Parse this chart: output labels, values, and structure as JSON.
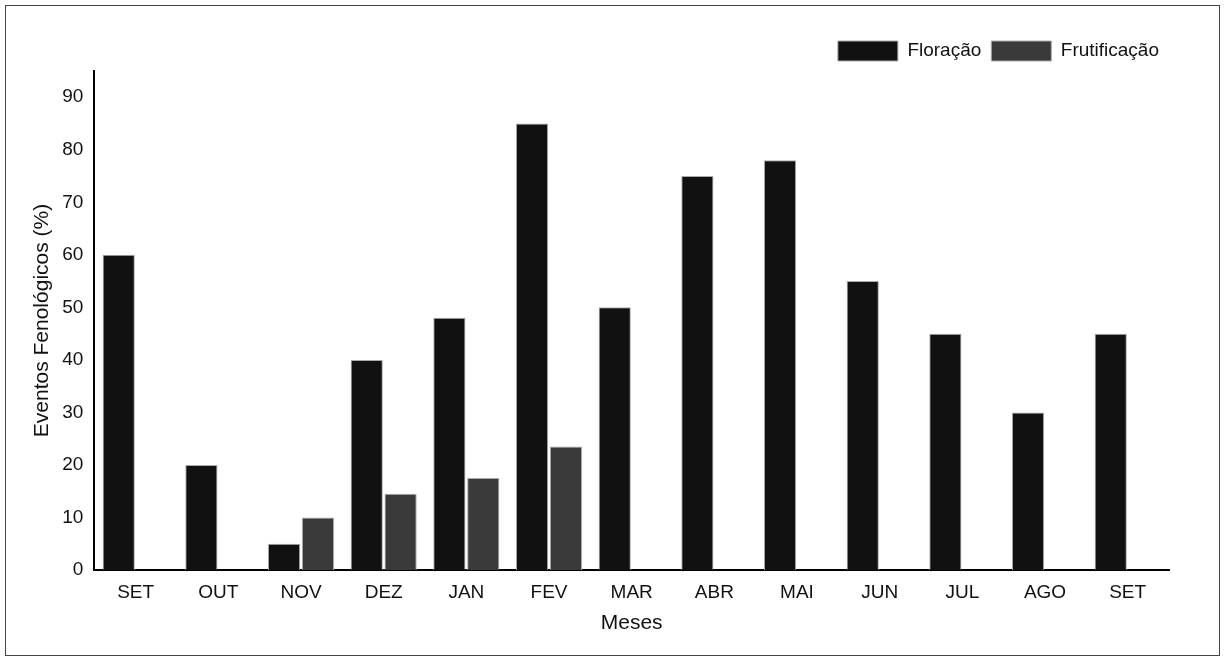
{
  "chart_data": {
    "type": "bar",
    "xlabel": "Meses",
    "ylabel": "Eventos Fenológicos (%)",
    "categories": [
      "SET",
      "OUT",
      "NOV",
      "DEZ",
      "JAN",
      "FEV",
      "MAR",
      "ABR",
      "MAI",
      "JUN",
      "JUL",
      "AGO",
      "SET"
    ],
    "series": [
      {
        "name": "Floração",
        "color": "#111111",
        "values": [
          60,
          20,
          5,
          40,
          48,
          85,
          50,
          75,
          78,
          55,
          45,
          30,
          45
        ]
      },
      {
        "name": "Frutificação",
        "color": "#3a3a3a",
        "values": [
          null,
          null,
          10,
          14.5,
          17.5,
          23.5,
          null,
          null,
          null,
          null,
          null,
          null,
          null
        ]
      }
    ],
    "ylim": [
      0,
      95
    ],
    "yticks": [
      0,
      10,
      20,
      30,
      40,
      50,
      60,
      70,
      80,
      90
    ],
    "grid": false,
    "legend": "top right"
  }
}
